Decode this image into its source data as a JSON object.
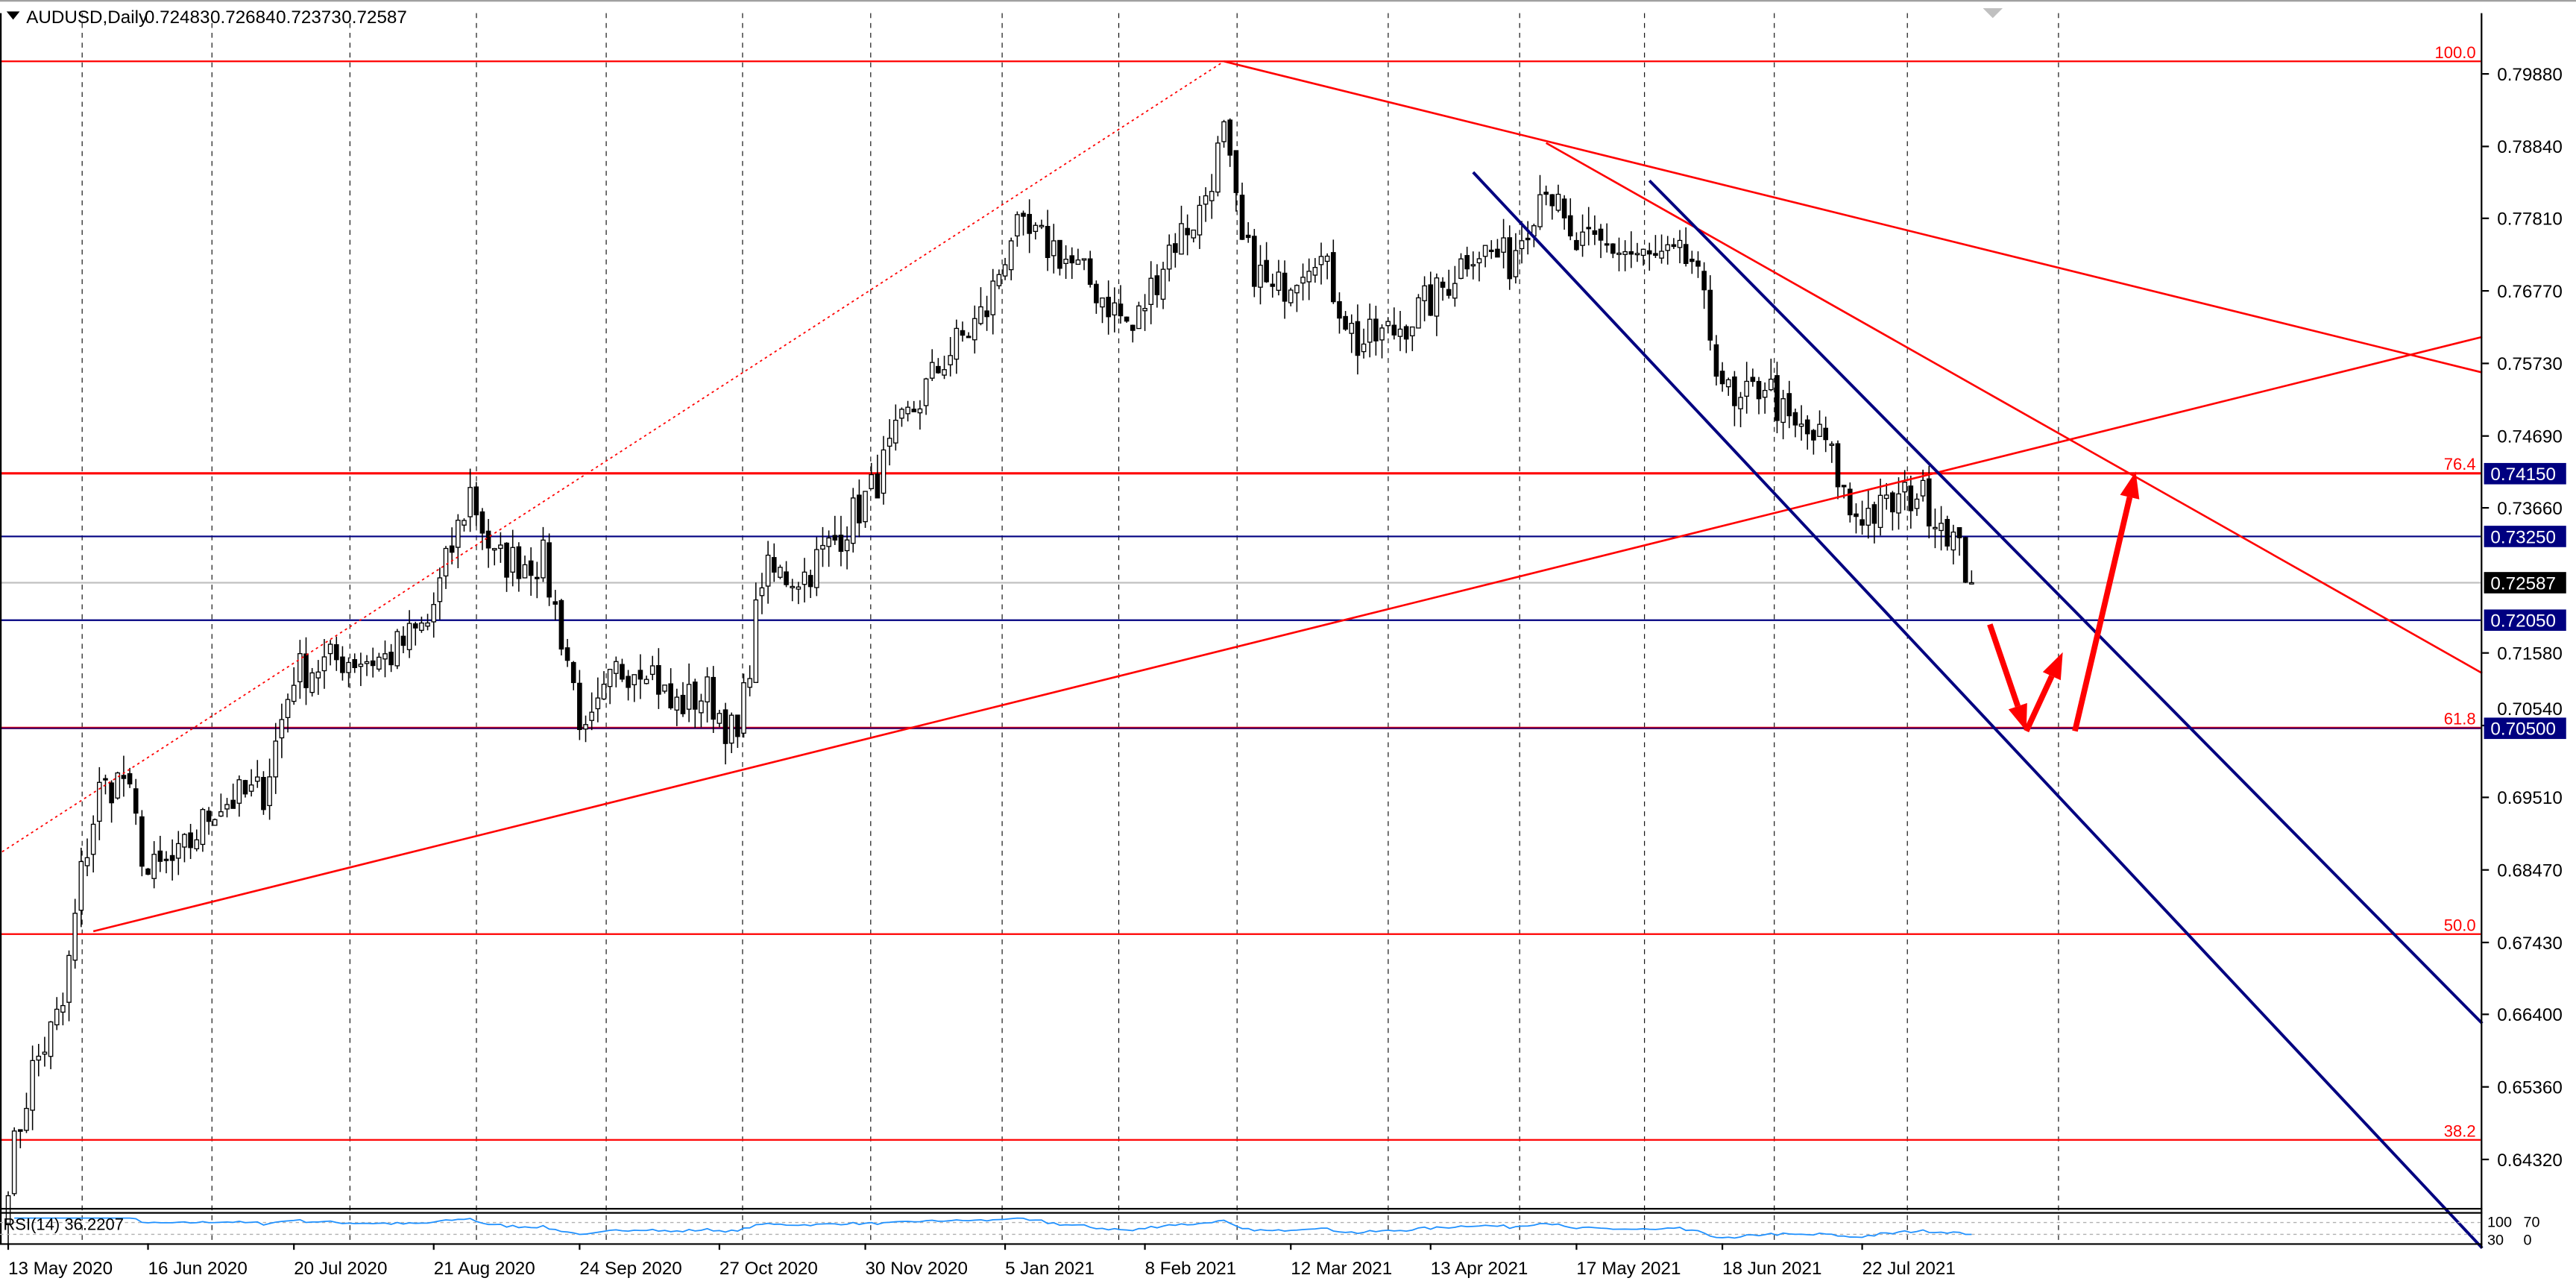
{
  "header": {
    "symbol_label": "AUDUSD,Daily",
    "open": "0.72483",
    "high": "0.72684",
    "low": "0.72373",
    "close": "0.72587"
  },
  "rsi": {
    "label": "RSI(14) 36.2207",
    "period": 14,
    "levels": [
      70,
      30
    ],
    "axis_labels": [
      "100",
      "70",
      "30",
      "0"
    ],
    "color": "#1e90ff"
  },
  "chart_data": {
    "type": "candlestick",
    "title": "AUDUSD,Daily",
    "ylim": [
      0.6405,
      0.8095
    ],
    "y_ticks": [
      "0.79880",
      "0.78840",
      "0.77810",
      "0.76770",
      "0.75730",
      "0.74690",
      "0.73660",
      "0.71580",
      "0.70540",
      "0.69510",
      "0.68470",
      "0.67430",
      "0.66400",
      "0.65360",
      "0.64320"
    ],
    "x_ticks": [
      {
        "bar": 0,
        "label": "13 May 2020"
      },
      {
        "bar": 23,
        "label": "16 Jun 2020"
      },
      {
        "bar": 47,
        "label": "20 Jul 2020"
      },
      {
        "bar": 70,
        "label": "21 Aug 2020"
      },
      {
        "bar": 94,
        "label": "24 Sep 2020"
      },
      {
        "bar": 117,
        "label": "27 Oct 2020"
      },
      {
        "bar": 141,
        "label": "30 Nov 2020"
      },
      {
        "bar": 164,
        "label": "5 Jan 2021"
      },
      {
        "bar": 187,
        "label": "8 Feb 2021"
      },
      {
        "bar": 211,
        "label": "12 Mar 2021"
      },
      {
        "bar": 234,
        "label": "13 Apr 2021"
      },
      {
        "bar": 258,
        "label": "17 May 2021"
      },
      {
        "bar": 282,
        "label": "18 Jun 2021"
      },
      {
        "bar": 305,
        "label": "22 Jul 2021"
      }
    ],
    "bar_count": 324,
    "close_anchors": [
      [
        0,
        0.641
      ],
      [
        4,
        0.656
      ],
      [
        9,
        0.665
      ],
      [
        12,
        0.684
      ],
      [
        15,
        0.696
      ],
      [
        19,
        0.698
      ],
      [
        23,
        0.684
      ],
      [
        28,
        0.686
      ],
      [
        34,
        0.694
      ],
      [
        42,
        0.696
      ],
      [
        47,
        0.713
      ],
      [
        55,
        0.715
      ],
      [
        62,
        0.715
      ],
      [
        69,
        0.72
      ],
      [
        76,
        0.739
      ],
      [
        80,
        0.729
      ],
      [
        88,
        0.729
      ],
      [
        92,
        0.715
      ],
      [
        95,
        0.703
      ],
      [
        100,
        0.713
      ],
      [
        105,
        0.715
      ],
      [
        109,
        0.708
      ],
      [
        115,
        0.71
      ],
      [
        120,
        0.703
      ],
      [
        124,
        0.727
      ],
      [
        131,
        0.727
      ],
      [
        136,
        0.732
      ],
      [
        142,
        0.739
      ],
      [
        147,
        0.748
      ],
      [
        154,
        0.758
      ],
      [
        161,
        0.765
      ],
      [
        165,
        0.776
      ],
      [
        172,
        0.774
      ],
      [
        180,
        0.767
      ],
      [
        185,
        0.762
      ],
      [
        191,
        0.774
      ],
      [
        196,
        0.779
      ],
      [
        200,
        0.79
      ],
      [
        203,
        0.774
      ],
      [
        208,
        0.767
      ],
      [
        215,
        0.774
      ],
      [
        222,
        0.76
      ],
      [
        228,
        0.762
      ],
      [
        235,
        0.767
      ],
      [
        241,
        0.774
      ],
      [
        247,
        0.772
      ],
      [
        253,
        0.784
      ],
      [
        257,
        0.774
      ],
      [
        264,
        0.774
      ],
      [
        270,
        0.772
      ],
      [
        277,
        0.772
      ],
      [
        281,
        0.758
      ],
      [
        284,
        0.75
      ],
      [
        289,
        0.755
      ],
      [
        293,
        0.748
      ],
      [
        299,
        0.746
      ],
      [
        303,
        0.736
      ],
      [
        308,
        0.736
      ],
      [
        314,
        0.739
      ],
      [
        319,
        0.734
      ],
      [
        323,
        0.72587
      ]
    ],
    "current_price": {
      "value": 0.72587,
      "label": "0.72587",
      "color": "#000000"
    },
    "price_levels": [
      {
        "value": 0.7415,
        "label": "0.74150",
        "color": "#ff0000",
        "box": "#000080"
      },
      {
        "value": 0.7325,
        "label": "0.73250",
        "color": "#000080",
        "box": "#000080"
      },
      {
        "value": 0.7205,
        "label": "0.72050",
        "color": "#000080",
        "box": "#000080"
      },
      {
        "value": 0.705,
        "label": "0.70500",
        "color": "#400060",
        "box": "#000080"
      }
    ],
    "fibonacci": [
      {
        "value": 0.8006,
        "label": "100.0"
      },
      {
        "value": 0.7416,
        "label": "76.4"
      },
      {
        "value": 0.7051,
        "label": "61.8"
      },
      {
        "value": 0.6755,
        "label": "50.0"
      },
      {
        "value": 0.646,
        "label": "38.2"
      }
    ],
    "trendlines": [
      {
        "from": [
          -1,
          0.6873
        ],
        "to": [
          200,
          0.8006
        ],
        "color": "#ff0000",
        "style": "dotted"
      },
      {
        "from": [
          14,
          0.6759
        ],
        "to": [
          407,
          0.7611
        ],
        "color": "#ff0000",
        "style": "solid"
      },
      {
        "from": [
          200,
          0.8006
        ],
        "to": [
          407,
          0.756
        ],
        "color": "#ff0000",
        "style": "solid"
      },
      {
        "from": [
          253,
          0.7889
        ],
        "to": [
          407,
          0.7129
        ],
        "color": "#ff0000",
        "style": "solid"
      },
      {
        "from": [
          241,
          0.7847
        ],
        "to": [
          407,
          0.6305
        ],
        "color": "#000080",
        "style": "thick"
      },
      {
        "from": [
          270,
          0.7835
        ],
        "to": [
          407,
          0.6627
        ],
        "color": "#000080",
        "style": "thick"
      }
    ],
    "arrows": [
      {
        "from": [
          326,
          0.7199
        ],
        "to": [
          332,
          0.7046
        ]
      },
      {
        "from": [
          332,
          0.7046
        ],
        "to": [
          338,
          0.7159
        ]
      },
      {
        "from": [
          340,
          0.7046
        ],
        "to": [
          350,
          0.7418
        ]
      }
    ],
    "colors": {
      "up_body": "#ffffff",
      "down_body": "#000000",
      "fib": "#ff0000",
      "grid": "#000000"
    }
  }
}
